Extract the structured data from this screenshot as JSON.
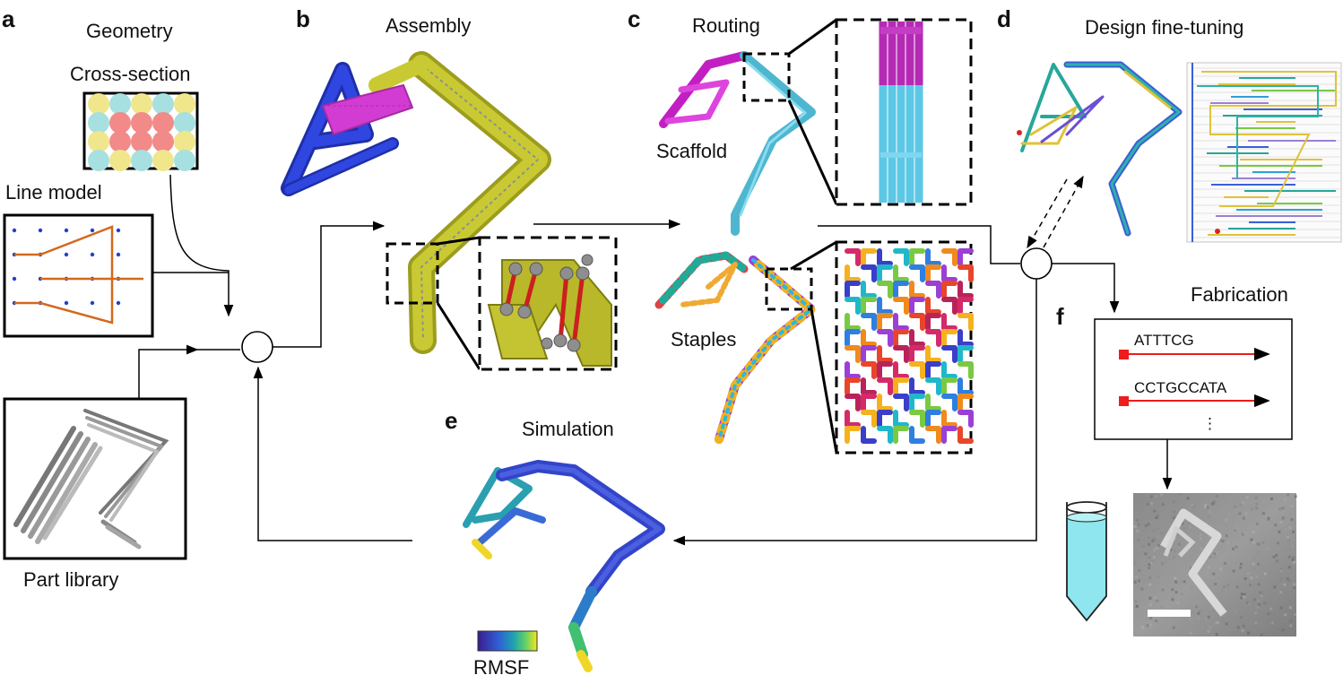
{
  "panels": {
    "a": {
      "letter": "a",
      "title": "Geometry",
      "cross_section": "Cross-section",
      "line_model": "Line model",
      "part_library": "Part library"
    },
    "b": {
      "letter": "b",
      "title": "Assembly"
    },
    "c": {
      "letter": "c",
      "title": "Routing",
      "scaffold": "Scaffold",
      "staples": "Staples"
    },
    "d": {
      "letter": "d",
      "title": "Design fine-tuning"
    },
    "e": {
      "letter": "e",
      "title": "Simulation",
      "colorbar_label": "RMSF"
    },
    "f": {
      "letter": "f",
      "title": "Fabrication",
      "sequences": [
        "ATTTCG",
        "CCTGCCATA"
      ],
      "ellipsis": "⋮"
    }
  },
  "colors": {
    "scaffold_magenta": "#d62fd6",
    "scaffold_cyan": "#5fc7e0",
    "assembly_olive": "#b8b82a",
    "assembly_blue": "#2a3fd6",
    "assembly_magenta": "#d23cd2",
    "strut_red": "#d02020",
    "fabrication_red": "#ee1c1c",
    "tube_liquid": "#8fe6ef"
  }
}
